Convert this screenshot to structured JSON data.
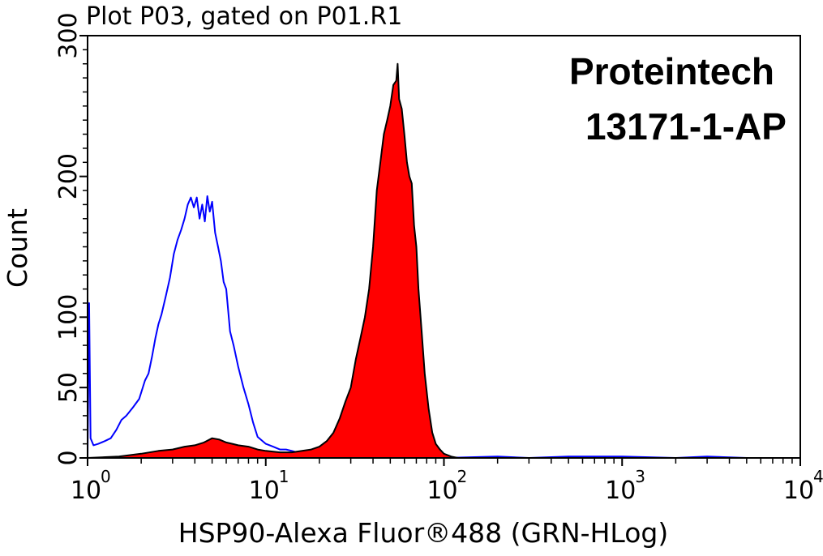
{
  "chart_data": {
    "type": "area",
    "title": "Plot P03, gated on P01.R1",
    "brand": "Proteintech",
    "catalog": "13171-1-AP",
    "xlabel": "HSP90-Alexa Fluor®488 (GRN-HLog)",
    "ylabel": "Count",
    "xscale": "log",
    "xlim": [
      1,
      10000
    ],
    "ylim": [
      0,
      300
    ],
    "x_ticks": [
      {
        "base": "10",
        "exp": "0",
        "value": 1
      },
      {
        "base": "10",
        "exp": "1",
        "value": 10
      },
      {
        "base": "10",
        "exp": "2",
        "value": 100
      },
      {
        "base": "10",
        "exp": "3",
        "value": 1000
      },
      {
        "base": "10",
        "exp": "4",
        "value": 10000
      }
    ],
    "y_ticks": [
      {
        "label": "0",
        "value": 0
      },
      {
        "label": "50",
        "value": 50
      },
      {
        "label": "100",
        "value": 100
      },
      {
        "label": "200",
        "value": 200
      },
      {
        "label": "300",
        "value": 300
      }
    ],
    "series": [
      {
        "color": "#0000ff",
        "fill": "none",
        "x": [
          1.0,
          1.02,
          1.04,
          1.08,
          1.15,
          1.25,
          1.35,
          1.45,
          1.55,
          1.65,
          1.8,
          1.95,
          2.1,
          2.2,
          2.3,
          2.4,
          2.5,
          2.6,
          2.75,
          2.9,
          3.05,
          3.2,
          3.35,
          3.5,
          3.65,
          3.8,
          3.95,
          4.1,
          4.25,
          4.4,
          4.55,
          4.7,
          4.85,
          5.0,
          5.2,
          5.4,
          5.6,
          5.8,
          6.0,
          6.3,
          6.6,
          7.0,
          7.5,
          8.0,
          8.5,
          9.0,
          10.0,
          11.0,
          12.0,
          13.0,
          14.0,
          16.0,
          18.0,
          20.0,
          25.0,
          30.0,
          40.0,
          60.0,
          100.0,
          200.0,
          300.0,
          500.0,
          1000.0,
          2000.0,
          3000.0,
          5000.0,
          10000.0
        ],
        "y": [
          0,
          110,
          14,
          9,
          10,
          12,
          14,
          20,
          27,
          30,
          36,
          42,
          55,
          60,
          72,
          85,
          95,
          102,
          115,
          128,
          145,
          155,
          162,
          170,
          180,
          185,
          178,
          185,
          170,
          180,
          168,
          186,
          175,
          182,
          160,
          150,
          140,
          125,
          120,
          90,
          80,
          65,
          50,
          38,
          25,
          15,
          10,
          8,
          6,
          6,
          5,
          3,
          2,
          2,
          1,
          1,
          1,
          0,
          0,
          1,
          0,
          1,
          1,
          0,
          1,
          0,
          0
        ]
      },
      {
        "color": "#000000",
        "fill": "#ff0000",
        "x": [
          1.0,
          1.5,
          2.0,
          2.5,
          3.0,
          3.5,
          4.0,
          4.5,
          5.0,
          5.5,
          6.0,
          6.5,
          7.0,
          8.0,
          9.0,
          10.0,
          12.0,
          14.0,
          16.0,
          18.0,
          20.0,
          22.0,
          24.0,
          26.0,
          28.0,
          30.0,
          32.0,
          34.0,
          36.0,
          38.0,
          40.0,
          42.0,
          44.0,
          46.0,
          48.0,
          50.0,
          52.0,
          54.0,
          55.0,
          56.0,
          58.0,
          60.0,
          62.0,
          64.0,
          66.0,
          68.0,
          70.0,
          72.0,
          75.0,
          78.0,
          82.0,
          86.0,
          90.0,
          95.0,
          100.0,
          110.0,
          120.0,
          150.0,
          200.0,
          10000.0
        ],
        "y": [
          0,
          1,
          3,
          5,
          6,
          8,
          9,
          11,
          14,
          13,
          11,
          10,
          9,
          8,
          6,
          5,
          4,
          4,
          5,
          6,
          8,
          12,
          18,
          28,
          40,
          50,
          70,
          85,
          100,
          120,
          150,
          190,
          210,
          230,
          240,
          250,
          265,
          268,
          280,
          255,
          248,
          230,
          210,
          200,
          195,
          165,
          150,
          120,
          90,
          60,
          35,
          18,
          10,
          6,
          3,
          1,
          0,
          0,
          0,
          0
        ]
      }
    ]
  }
}
